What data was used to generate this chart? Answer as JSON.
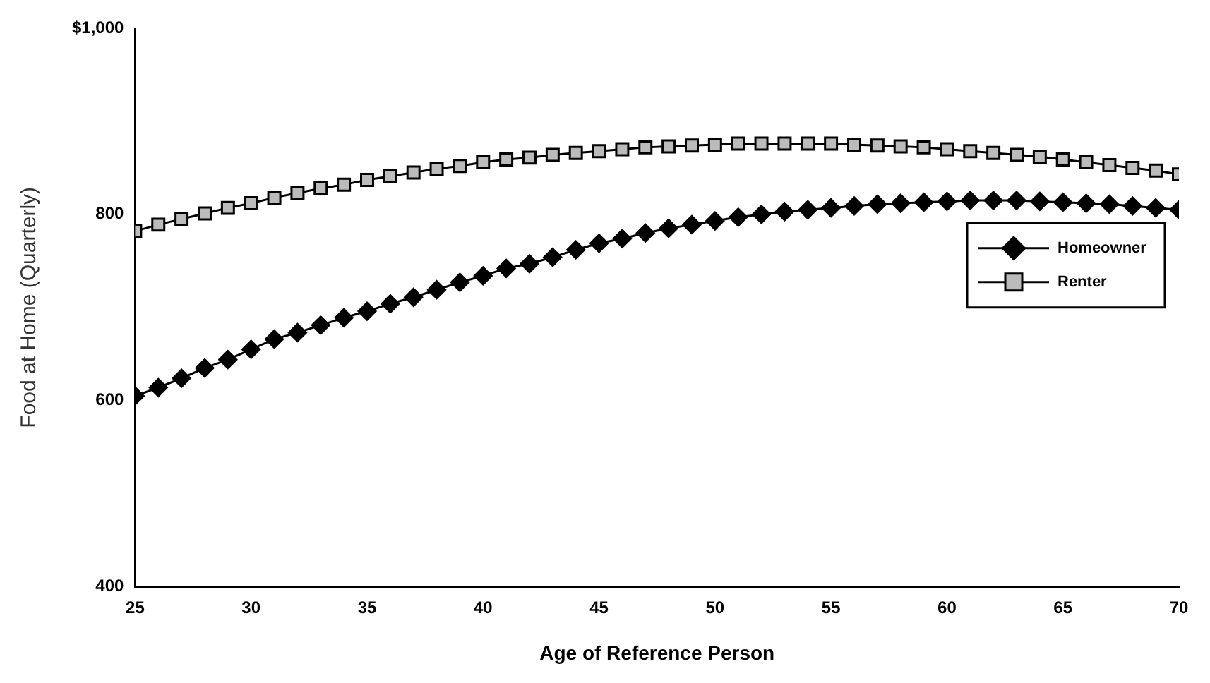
{
  "chart_data": {
    "type": "line",
    "xlabel": "Age of Reference Person",
    "ylabel": "Food at Home (Quarterly)",
    "x": [
      25,
      26,
      27,
      28,
      29,
      30,
      31,
      32,
      33,
      34,
      35,
      36,
      37,
      38,
      39,
      40,
      41,
      42,
      43,
      44,
      45,
      46,
      47,
      48,
      49,
      50,
      51,
      52,
      53,
      54,
      55,
      56,
      57,
      58,
      59,
      60,
      61,
      62,
      63,
      64,
      65,
      66,
      67,
      68,
      69,
      70
    ],
    "series": [
      {
        "name": "Homeowner",
        "color": "#000000",
        "marker": "diamond",
        "values": [
          605,
          614,
          624,
          635,
          644,
          655,
          666,
          673,
          681,
          689,
          696,
          704,
          711,
          719,
          727,
          734,
          742,
          747,
          754,
          762,
          769,
          774,
          780,
          785,
          789,
          793,
          797,
          800,
          803,
          805,
          807,
          809,
          811,
          812,
          813,
          814,
          815,
          815,
          815,
          814,
          813,
          812,
          811,
          809,
          807,
          805
        ]
      },
      {
        "name": "Renter",
        "color": "#bbbbbb",
        "marker": "square",
        "values": [
          782,
          789,
          795,
          801,
          807,
          812,
          818,
          823,
          828,
          832,
          837,
          841,
          845,
          849,
          852,
          856,
          859,
          861,
          864,
          866,
          868,
          870,
          872,
          873,
          874,
          875,
          876,
          876,
          876,
          876,
          876,
          875,
          874,
          873,
          872,
          870,
          868,
          866,
          864,
          862,
          859,
          856,
          853,
          850,
          847,
          843
        ]
      }
    ],
    "xlim": [
      25,
      70
    ],
    "xticks": [
      25,
      30,
      35,
      40,
      45,
      50,
      55,
      60,
      65,
      70
    ],
    "ylim": [
      400,
      1000
    ],
    "yticks": [
      400,
      600,
      800,
      {
        "value": 1000,
        "label": "$1,000"
      }
    ],
    "grid": false,
    "legend": "right",
    "line_style": "solid"
  }
}
